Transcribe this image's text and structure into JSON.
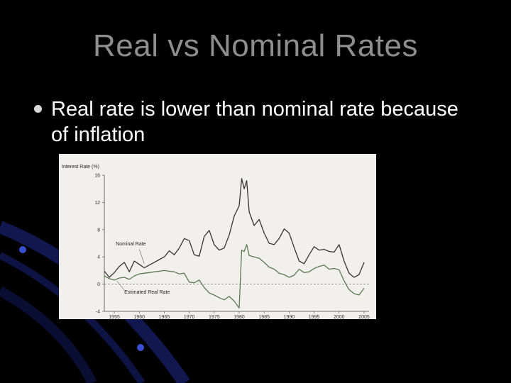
{
  "slide": {
    "title": "Real vs Nominal Rates",
    "bullet": "Real rate is lower than nominal rate because of inflation",
    "colors": {
      "background": "#000000",
      "title": "#8e8e8e",
      "text": "#ffffff",
      "accent": "#1a2a9a"
    }
  },
  "chart_data": {
    "type": "line",
    "title": "",
    "ylabel": "Interest Rate (%)",
    "xlabel": "",
    "xlim": [
      1953,
      2006
    ],
    "ylim": [
      -4,
      16
    ],
    "yticks": [
      -4,
      0,
      4,
      8,
      12,
      16
    ],
    "xticks": [
      1955,
      1960,
      1965,
      1970,
      1975,
      1980,
      1985,
      1990,
      1995,
      2000,
      2005
    ],
    "grid": false,
    "zero_line": "dashed",
    "series": [
      {
        "name": "Nominal Rate",
        "color": "#333333",
        "x": [
          1953,
          1954,
          1955,
          1956,
          1957,
          1958,
          1959,
          1960,
          1961,
          1962,
          1963,
          1964,
          1965,
          1966,
          1967,
          1968,
          1969,
          1970,
          1971,
          1972,
          1973,
          1974,
          1975,
          1976,
          1977,
          1978,
          1979,
          1980,
          1980.5,
          1981,
          1981.5,
          1982,
          1983,
          1984,
          1985,
          1986,
          1987,
          1988,
          1989,
          1990,
          1991,
          1992,
          1993,
          1994,
          1995,
          1996,
          1997,
          1998,
          1999,
          2000,
          2001,
          2002,
          2003,
          2004,
          2005
        ],
        "y": [
          1.9,
          1.0,
          1.7,
          2.6,
          3.2,
          1.8,
          3.4,
          2.9,
          2.4,
          2.8,
          3.2,
          3.6,
          4.0,
          4.9,
          4.3,
          5.3,
          6.7,
          6.4,
          4.3,
          4.1,
          7.0,
          7.9,
          5.8,
          5.0,
          5.3,
          7.2,
          10.0,
          11.5,
          15.5,
          14.0,
          15.2,
          10.6,
          8.6,
          9.5,
          7.5,
          6.0,
          5.8,
          6.7,
          8.1,
          7.5,
          5.4,
          3.4,
          3.0,
          4.3,
          5.5,
          5.0,
          5.1,
          4.8,
          4.7,
          5.8,
          3.4,
          1.6,
          1.0,
          1.4,
          3.2
        ]
      },
      {
        "name": "Estimated Real Rate",
        "color": "#5a7a50",
        "x": [
          1953,
          1954,
          1955,
          1956,
          1957,
          1958,
          1959,
          1960,
          1961,
          1962,
          1963,
          1964,
          1965,
          1966,
          1967,
          1968,
          1969,
          1970,
          1971,
          1972,
          1973,
          1974,
          1975,
          1976,
          1977,
          1978,
          1979,
          1980,
          1980.5,
          1981,
          1981.5,
          1982,
          1983,
          1984,
          1985,
          1986,
          1987,
          1988,
          1989,
          1990,
          1991,
          1992,
          1993,
          1994,
          1995,
          1996,
          1997,
          1998,
          1999,
          2000,
          2001,
          2002,
          2003,
          2004,
          2005
        ],
        "y": [
          1.2,
          0.8,
          0.6,
          0.9,
          1.0,
          0.7,
          1.2,
          1.5,
          1.6,
          1.7,
          1.8,
          1.9,
          2.0,
          1.9,
          1.8,
          1.5,
          1.6,
          0.3,
          0.2,
          0.6,
          -0.5,
          -1.3,
          -1.6,
          -2.0,
          -2.3,
          -1.8,
          -2.5,
          -3.5,
          5.0,
          4.8,
          5.8,
          4.2,
          4.0,
          3.8,
          3.2,
          2.5,
          2.2,
          1.6,
          1.4,
          1.0,
          1.3,
          2.2,
          1.7,
          1.8,
          2.3,
          2.6,
          2.8,
          2.2,
          2.3,
          2.1,
          0.5,
          -0.8,
          -1.4,
          -1.6,
          -0.6
        ]
      }
    ],
    "annotations": [
      "Nominal Rate",
      "Estimated Real Rate"
    ]
  }
}
